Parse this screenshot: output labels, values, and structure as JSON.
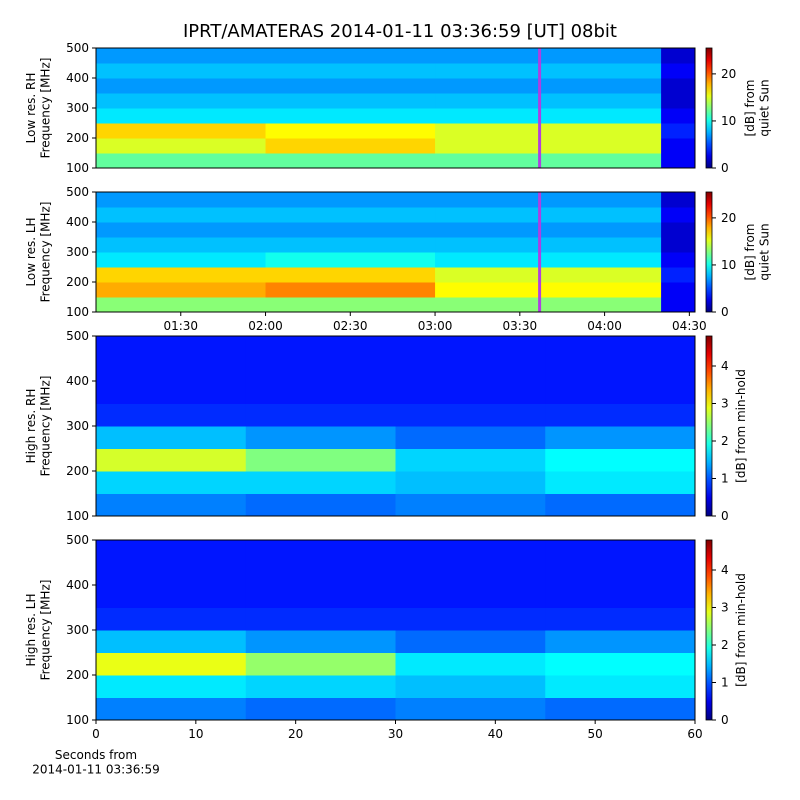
{
  "chart_data": [
    {
      "type": "heatmap",
      "title": "IPRT/AMATERAS 2014-01-11 03:36:59 [UT]   08bit",
      "colormap": "jet",
      "ylabel": "Low res. RH\nFrequency [MHz]",
      "ylim": [
        100,
        500
      ],
      "yticks": [
        100,
        200,
        300,
        400,
        500
      ],
      "xlim": [
        60,
        272
      ],
      "x_edges": [
        60,
        120,
        180,
        260,
        272
      ],
      "y_edges": [
        100,
        150,
        200,
        250,
        300,
        350,
        400,
        450,
        500
      ],
      "z": [
        [
          12,
          12,
          12,
          3
        ],
        [
          15,
          17,
          15,
          3
        ],
        [
          17,
          16,
          15,
          4
        ],
        [
          9,
          9,
          9,
          3
        ],
        [
          8,
          8,
          8,
          2
        ],
        [
          7,
          7,
          7,
          2
        ],
        [
          8,
          8,
          8,
          3
        ],
        [
          7,
          7,
          7,
          2
        ]
      ],
      "marker_x": 217,
      "marker_color": "#b040e0",
      "colorbar": {
        "label": "[dB] from\nquiet Sun",
        "lim": [
          0,
          25.5
        ],
        "ticks": [
          0,
          10,
          20
        ]
      }
    },
    {
      "type": "heatmap",
      "colormap": "jet",
      "ylabel": "Low res. LH\nFrequency [MHz]",
      "ylim": [
        100,
        500
      ],
      "yticks": [
        100,
        200,
        300,
        400,
        500
      ],
      "xlim": [
        60,
        272
      ],
      "x_edges": [
        60,
        120,
        180,
        260,
        272
      ],
      "y_edges": [
        100,
        150,
        200,
        250,
        300,
        350,
        400,
        450,
        500
      ],
      "xticks": [
        {
          "value": 90,
          "label": "01:30"
        },
        {
          "value": 120,
          "label": "02:00"
        },
        {
          "value": 150,
          "label": "02:30"
        },
        {
          "value": 180,
          "label": "03:00"
        },
        {
          "value": 210,
          "label": "03:30"
        },
        {
          "value": 240,
          "label": "04:00"
        },
        {
          "value": 270,
          "label": "04:30"
        }
      ],
      "z": [
        [
          13,
          13,
          13,
          3
        ],
        [
          18,
          19,
          16,
          3
        ],
        [
          17,
          17,
          15,
          4
        ],
        [
          9,
          10,
          9,
          3
        ],
        [
          8,
          8,
          8,
          2
        ],
        [
          7,
          7,
          7,
          2
        ],
        [
          8,
          8,
          8,
          3
        ],
        [
          7,
          7,
          7,
          2
        ]
      ],
      "marker_x": 217,
      "marker_color": "#b040e0",
      "colorbar": {
        "label": "[dB] from\nquiet Sun",
        "lim": [
          0,
          25.5
        ],
        "ticks": [
          0,
          10,
          20
        ]
      }
    },
    {
      "type": "heatmap",
      "colormap": "jet",
      "ylabel": "High res. RH\nFrequency [MHz]",
      "ylim": [
        100,
        500
      ],
      "yticks": [
        100,
        200,
        300,
        400,
        500
      ],
      "xlim": [
        0,
        60
      ],
      "x_edges": [
        0,
        15,
        30,
        45,
        60
      ],
      "y_edges": [
        100,
        150,
        200,
        250,
        300,
        350,
        400,
        450,
        500
      ],
      "z": [
        [
          1.2,
          1.1,
          1.2,
          1.1
        ],
        [
          1.6,
          1.6,
          1.5,
          1.7
        ],
        [
          2.8,
          2.4,
          1.6,
          1.8
        ],
        [
          1.5,
          1.3,
          1.1,
          1.3
        ],
        [
          0.8,
          0.8,
          0.8,
          0.8
        ],
        [
          0.7,
          0.7,
          0.7,
          0.7
        ],
        [
          0.7,
          0.7,
          0.7,
          0.7
        ],
        [
          0.7,
          0.7,
          0.7,
          0.7
        ]
      ],
      "colorbar": {
        "label": "[dB] from min-hold",
        "lim": [
          0,
          4.8
        ],
        "ticks": [
          0,
          1,
          2,
          3,
          4
        ]
      }
    },
    {
      "type": "heatmap",
      "colormap": "jet",
      "ylabel": "High res. LH\nFrequency [MHz]",
      "ylim": [
        100,
        500
      ],
      "yticks": [
        100,
        200,
        300,
        400,
        500
      ],
      "xlim": [
        0,
        60
      ],
      "x_edges": [
        0,
        15,
        30,
        45,
        60
      ],
      "y_edges": [
        100,
        150,
        200,
        250,
        300,
        350,
        400,
        450,
        500
      ],
      "xticks": [
        0,
        10,
        20,
        30,
        40,
        50,
        60
      ],
      "xlabel": "Seconds from\n2014-01-11 03:36:59",
      "z": [
        [
          1.2,
          1.1,
          1.2,
          1.1
        ],
        [
          1.7,
          1.6,
          1.5,
          1.7
        ],
        [
          2.9,
          2.5,
          1.7,
          1.8
        ],
        [
          1.5,
          1.3,
          1.1,
          1.3
        ],
        [
          0.8,
          0.8,
          0.8,
          0.8
        ],
        [
          0.7,
          0.7,
          0.7,
          0.7
        ],
        [
          0.7,
          0.7,
          0.7,
          0.7
        ],
        [
          0.7,
          0.7,
          0.7,
          0.7
        ]
      ],
      "colorbar": {
        "label": "[dB] from min-hold",
        "lim": [
          0,
          4.8
        ],
        "ticks": [
          0,
          1,
          2,
          3,
          4
        ]
      }
    }
  ]
}
